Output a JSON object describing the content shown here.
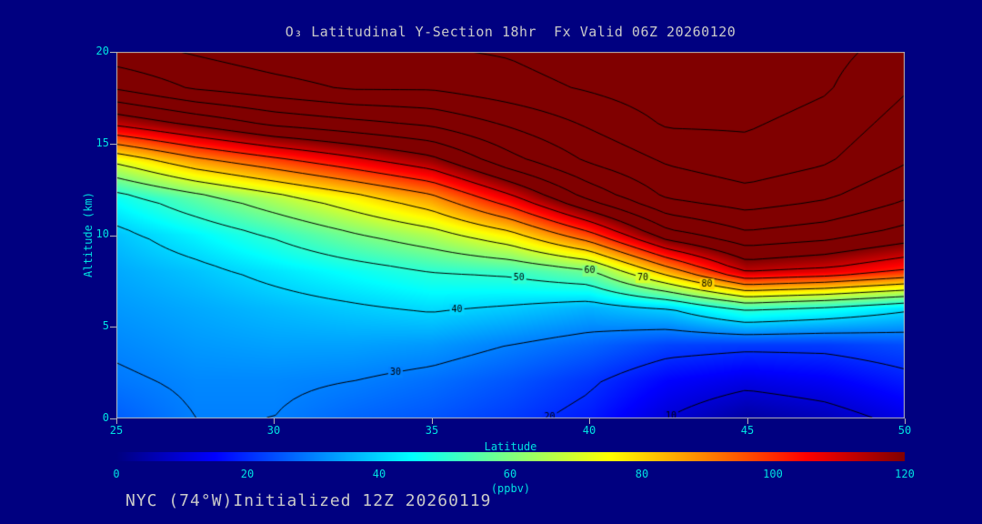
{
  "title": "O₃ Latitudinal Y-Section 18hr  Fx Valid 06Z 20260120",
  "footer": {
    "caption": "NYC (74°W)Initialized 12Z 20260119"
  },
  "axes": {
    "x_label": "Latitude",
    "y_label": "Altitude (km)",
    "x_ticks": [
      25,
      30,
      35,
      40,
      45,
      50
    ],
    "y_ticks": [
      20,
      15,
      10,
      5,
      0
    ]
  },
  "colorbar": {
    "label": "(ppbv)",
    "ticks": [
      0,
      20,
      40,
      60,
      80,
      100,
      120
    ],
    "min": 0,
    "max": 120
  },
  "colors": {
    "background": "#000080",
    "text": "#c9c9c9",
    "axis_text": "#00e1e1",
    "frame": "#b8b8b8",
    "contour_line": "#000000",
    "saturated_high": "#800000"
  },
  "chart_data": {
    "type": "heatmap",
    "title": "O₃ Latitudinal Y-Section 18hr  Fx Valid 06Z 20260120",
    "xlabel": "Latitude",
    "ylabel": "Altitude (km)",
    "zlabel": "(ppbv)",
    "xlim": [
      25,
      50
    ],
    "ylim": [
      0,
      20
    ],
    "zlim": [
      0,
      120
    ],
    "x": [
      25,
      27.5,
      30,
      32.5,
      35,
      37.5,
      40,
      42.5,
      45,
      47.5,
      50
    ],
    "y": [
      0,
      2,
      4,
      6,
      8,
      10,
      12,
      14,
      16,
      18,
      20
    ],
    "values": [
      [
        26,
        30,
        30,
        27,
        25,
        22,
        18,
        10,
        4,
        7,
        12
      ],
      [
        29,
        31,
        31,
        30,
        28,
        25,
        21,
        15,
        12,
        14,
        18
      ],
      [
        31,
        33,
        34,
        34,
        33,
        30,
        27,
        23,
        22,
        22,
        24
      ],
      [
        33,
        35,
        37,
        39,
        41,
        39,
        36,
        40,
        52,
        48,
        42
      ],
      [
        35,
        38,
        42,
        46,
        50,
        52,
        58,
        85,
        112,
        108,
        100
      ],
      [
        38,
        44,
        51,
        59,
        66,
        77,
        97,
        126,
        138,
        134,
        126
      ],
      [
        46,
        56,
        66,
        76,
        87,
        107,
        132,
        151,
        156,
        151,
        141
      ],
      [
        71,
        86,
        96,
        106,
        116,
        136,
        151,
        161,
        166,
        161,
        151
      ],
      [
        111,
        121,
        131,
        136,
        141,
        151,
        161,
        171,
        171,
        166,
        156
      ],
      [
        141,
        151,
        156,
        161,
        161,
        166,
        171,
        176,
        176,
        171,
        161
      ],
      [
        156,
        161,
        166,
        169,
        169,
        171,
        176,
        179,
        179,
        173,
        166
      ]
    ],
    "contour_interval": 10,
    "labeled_contours": [
      10,
      20,
      30,
      40,
      50,
      60,
      70,
      80
    ],
    "colormap_stops": [
      {
        "t": 0.0,
        "c": "#000080"
      },
      {
        "t": 0.125,
        "c": "#0000ff"
      },
      {
        "t": 0.375,
        "c": "#00ffff"
      },
      {
        "t": 0.625,
        "c": "#ffff00"
      },
      {
        "t": 0.875,
        "c": "#ff0000"
      },
      {
        "t": 1.0,
        "c": "#800000"
      }
    ],
    "legend_position": "bottom",
    "grid": false
  }
}
